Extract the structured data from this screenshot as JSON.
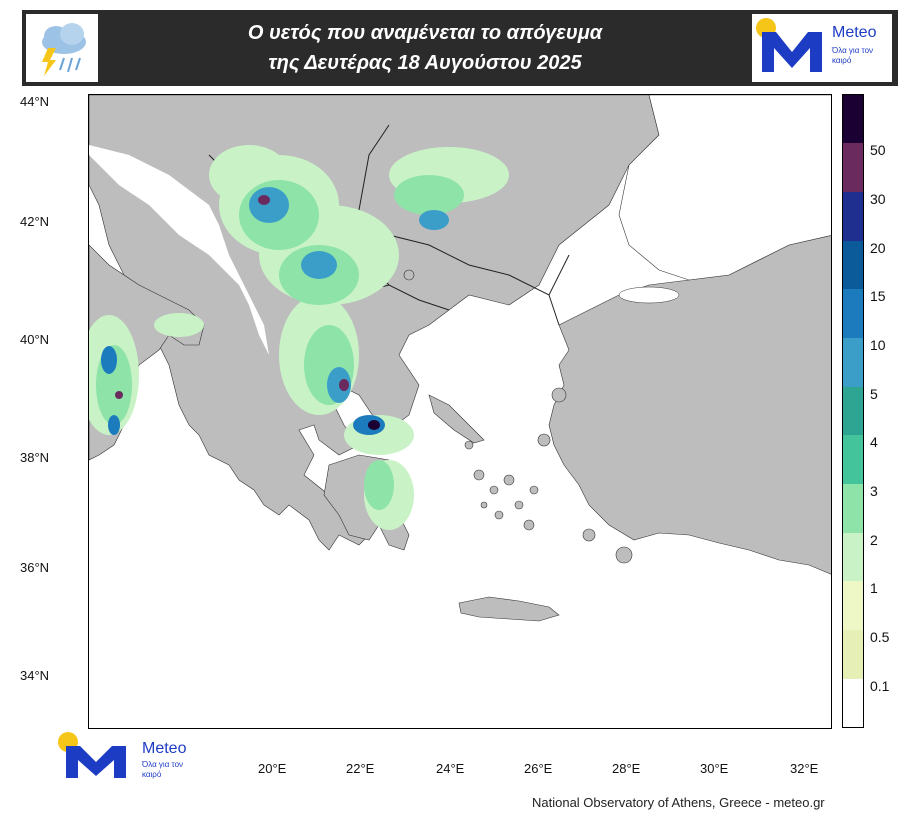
{
  "header": {
    "title_line1": "Ο υετός που αναμένεται το απόγευμα",
    "title_line2": "της Δευτέρας 18 Αυγούστου 2025"
  },
  "logo": {
    "name": "Meteo",
    "tagline": "Όλα για τον καιρό"
  },
  "map": {
    "lat_labels": [
      "44°N",
      "42°N",
      "40°N",
      "38°N",
      "36°N",
      "34°N"
    ],
    "lon_labels": [
      "20°E",
      "22°E",
      "24°E",
      "26°E",
      "28°E",
      "30°E",
      "32°E"
    ],
    "colors": {
      "land": "#bdbdbd",
      "sea": "#ffffff"
    }
  },
  "legend": {
    "labels": [
      "50",
      "30",
      "20",
      "15",
      "10",
      "5",
      "4",
      "3",
      "2",
      "1",
      "0.5",
      "0.1"
    ],
    "colors": [
      "#1a0033",
      "#6a2a5e",
      "#1e2f8f",
      "#0b5b9a",
      "#1c7bbd",
      "#3a9ec9",
      "#2ea592",
      "#44c49a",
      "#8ee3a8",
      "#c9f3c6",
      "#eef7c6",
      "#e6f0b6",
      "#ffffff"
    ]
  },
  "credit": "National Observatory of Athens, Greece - meteo.gr"
}
